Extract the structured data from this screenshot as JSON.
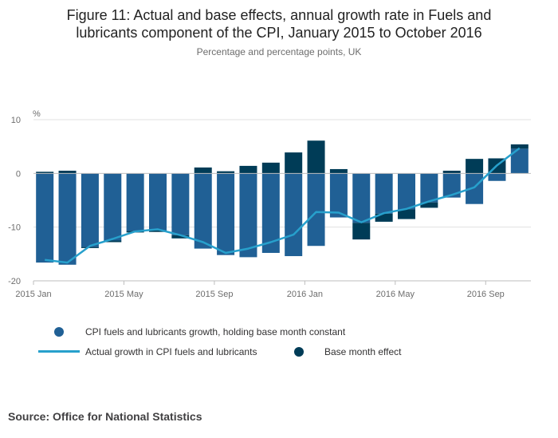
{
  "title_line1": "Figure 11: Actual and base effects, annual growth rate in Fuels and",
  "title_line2": "lubricants component of the CPI, January 2015 to October 2016",
  "subtitle": "Percentage and percentage points, UK",
  "source": "Source: Office for National Statistics",
  "colors": {
    "constant_bar": "#206095",
    "base_effect_bar": "#003c57",
    "actual_line": "#27a0cc",
    "grid": "#e0e0e0",
    "axis_text": "#6d6d6d"
  },
  "legend": {
    "constant_label": "CPI fuels and lubricants growth, holding base month constant",
    "actual_label": "Actual growth in CPI fuels and lubricants",
    "base_label": "Base month effect"
  },
  "chart_data": {
    "type": "bar",
    "title": "Figure 11: Actual and base effects, annual growth rate in Fuels and lubricants component of the CPI, January 2015 to October 2016",
    "subtitle": "Percentage and percentage points, UK",
    "ylabel": "%",
    "ylim": [
      -20,
      10
    ],
    "yticks": [
      10,
      0,
      -10,
      -20
    ],
    "grid": true,
    "legend_position": "bottom",
    "categories": [
      "2015 Jan",
      "2015 Feb",
      "2015 Mar",
      "2015 Apr",
      "2015 May",
      "2015 Jun",
      "2015 Jul",
      "2015 Aug",
      "2015 Sep",
      "2015 Oct",
      "2015 Nov",
      "2015 Dec",
      "2016 Jan",
      "2016 Feb",
      "2016 Mar",
      "2016 Apr",
      "2016 May",
      "2016 Jun",
      "2016 Jul",
      "2016 Aug",
      "2016 Sep",
      "2016 Oct"
    ],
    "xtick_labels": [
      {
        "index": 0,
        "label": "2015 Jan"
      },
      {
        "index": 4,
        "label": "2015 May"
      },
      {
        "index": 8,
        "label": "2015 Sep"
      },
      {
        "index": 12,
        "label": "2016 Jan"
      },
      {
        "index": 16,
        "label": "2016 May"
      },
      {
        "index": 20,
        "label": "2016 Sep"
      }
    ],
    "series": [
      {
        "name": "CPI fuels and lubricants growth, holding base month constant",
        "kind": "stacked-bar",
        "values": [
          -16.6,
          -17.0,
          -13.7,
          -12.5,
          -10.7,
          -10.6,
          -11.5,
          -14.0,
          -15.2,
          -15.6,
          -14.8,
          -15.4,
          -13.5,
          -8.2,
          -9.2,
          -7.5,
          -6.7,
          -5.4,
          -4.5,
          -5.7,
          -1.4,
          4.6
        ]
      },
      {
        "name": "Base month effect",
        "kind": "stacked-bar",
        "values": [
          0.3,
          0.5,
          -0.2,
          -0.3,
          -0.3,
          -0.3,
          -0.6,
          1.1,
          0.4,
          1.4,
          2.0,
          3.9,
          6.1,
          0.8,
          -3.1,
          -1.5,
          -1.8,
          -1.0,
          0.5,
          2.7,
          2.8,
          0.8
        ]
      },
      {
        "name": "Actual growth in CPI fuels and lubricants",
        "kind": "line",
        "values": [
          -16.1,
          -16.6,
          -13.5,
          -12.2,
          -10.8,
          -10.4,
          -11.5,
          -12.8,
          -14.8,
          -14.0,
          -12.8,
          -11.4,
          -7.2,
          -7.3,
          -9.1,
          -7.4,
          -6.6,
          -5.2,
          -4.0,
          -2.6,
          1.5,
          4.7
        ]
      }
    ]
  }
}
